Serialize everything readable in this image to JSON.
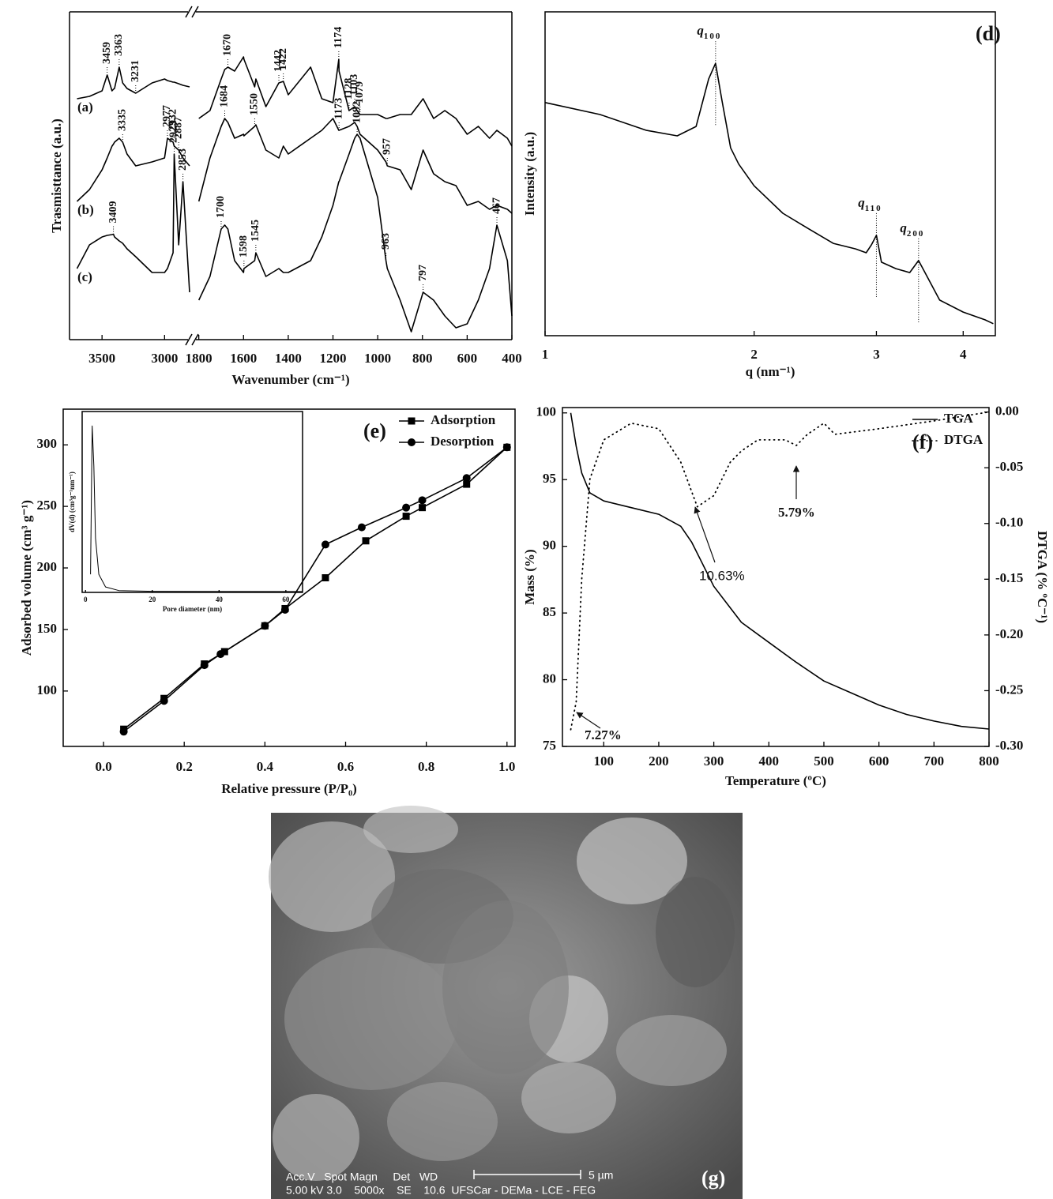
{
  "chart_data": [
    {
      "type": "line",
      "x_label": "Wavenumber (cm⁻¹)",
      "y_label": "Trasmisttance (a.u.)",
      "xlim": [
        3760,
        400
      ],
      "x_break": [
        2800,
        1820
      ],
      "ylim": [
        0,
        83
      ],
      "xticks": [
        3500,
        3000,
        1800,
        1600,
        1400,
        1200,
        1000,
        800,
        600,
        400
      ],
      "x": [
        3700,
        3600,
        3500,
        3459,
        3420,
        3409,
        3400,
        3363,
        3335,
        3300,
        3231,
        3100,
        3000,
        2977,
        2932,
        2923,
        2887,
        2853,
        2800,
        1800,
        1750,
        1700,
        1684,
        1670,
        1640,
        1600,
        1598,
        1550,
        1545,
        1500,
        1442,
        1422,
        1400,
        1300,
        1250,
        1200,
        1174,
        1173,
        1128,
        1103,
        1092,
        1079,
        1000,
        963,
        957,
        900,
        850,
        797,
        750,
        700,
        650,
        600,
        550,
        500,
        467,
        420,
        400
      ],
      "series": [
        {
          "name": "(a)",
          "color": "#000000",
          "values": [
            61,
            61.6,
            63,
            67,
            63,
            63.4,
            63.6,
            69,
            65,
            63.6,
            62.4,
            65,
            66,
            65.6,
            65.2,
            65.2,
            64.8,
            64.4,
            64,
            56,
            58,
            66,
            68.4,
            69,
            68,
            71.6,
            71,
            64,
            66,
            59,
            65,
            65.4,
            62,
            69,
            61,
            60,
            71,
            68,
            58,
            59,
            58,
            57,
            57,
            56,
            56,
            57,
            57,
            61,
            56,
            58,
            56,
            52,
            54,
            51,
            53,
            51,
            49
          ],
          "peaks": [
            3459,
            3363,
            3231,
            1670,
            1442,
            1422,
            1174,
            1128,
            1103,
            1079
          ]
        },
        {
          "name": "(b)",
          "color": "#000000",
          "values": [
            35,
            38,
            43,
            46,
            49,
            49.5,
            50,
            51,
            50,
            47,
            44,
            45,
            46,
            51,
            50,
            49,
            48,
            46,
            44,
            35,
            46,
            54,
            56,
            55,
            51,
            52,
            51.6,
            54,
            54.4,
            48,
            46,
            49,
            47,
            51,
            53,
            56,
            53,
            53,
            54,
            55,
            54,
            52,
            48,
            45,
            44,
            43,
            38,
            48,
            42,
            40,
            39,
            34,
            35,
            33,
            34,
            33,
            32
          ],
          "peaks": [
            2977,
            2932,
            2887,
            3335,
            1684,
            1550,
            1173,
            957
          ]
        },
        {
          "name": "(c)",
          "color": "#000000",
          "values": [
            18,
            24,
            26,
            26.4,
            26.6,
            26.7,
            26,
            25,
            24.4,
            23,
            21,
            17,
            17,
            18,
            22,
            47,
            24,
            40,
            12,
            10,
            16,
            28,
            29,
            28,
            20,
            17,
            18,
            20,
            22,
            16,
            18,
            17,
            17,
            20,
            26,
            34,
            40,
            40,
            47,
            51,
            52,
            51,
            36,
            20,
            18,
            10,
            2,
            12,
            10,
            6,
            3,
            4,
            10,
            18,
            29,
            20,
            6
          ],
          "peaks": [
            3409,
            2923,
            2853,
            1700,
            1598,
            1545,
            1092,
            963,
            797,
            467
          ]
        }
      ]
    },
    {
      "type": "line",
      "panel_label": "(d)",
      "x_label": "q (nm⁻¹)",
      "y_label": "Intensity (a.u.)",
      "xscale": "log",
      "xlim": [
        1,
        4.45
      ],
      "ylim": [
        0,
        100
      ],
      "xticks": [
        1,
        2,
        3,
        4
      ],
      "x": [
        1,
        1.2,
        1.4,
        1.55,
        1.65,
        1.72,
        1.76,
        1.8,
        1.85,
        1.9,
        2,
        2.2,
        2.4,
        2.6,
        2.8,
        2.9,
        2.95,
        3,
        3.05,
        3.2,
        3.35,
        3.45,
        3.5,
        3.7,
        4,
        4.3,
        4.42
      ],
      "series": [
        {
          "color": "#000000",
          "values": [
            72,
            68.3,
            63.4,
            61.7,
            64.6,
            79.3,
            84.1,
            72,
            58,
            53,
            46.3,
            37.8,
            32.9,
            28.5,
            26.8,
            25.6,
            28,
            31,
            22.7,
            20.7,
            19.5,
            23.2,
            20.7,
            11,
            7.3,
            4.9,
            3.7
          ]
        }
      ],
      "peaks": [
        {
          "label": "q",
          "sub": "100",
          "x": 1.76
        },
        {
          "label": "q",
          "sub": "110",
          "x": 3
        },
        {
          "label": "q",
          "sub": "200",
          "x": 3.45
        }
      ]
    },
    {
      "type": "line",
      "panel_label": "(e)",
      "x_label": "Relative pressure (P/P₀)",
      "y_label": "Adsorbed volume (cm³ g⁻¹)",
      "xlim": [
        -0.1,
        1.02
      ],
      "ylim": [
        55,
        329
      ],
      "legend": "upper right",
      "xticks": [
        {
          "value": 0,
          "label": "0.0"
        },
        0.2,
        0.4,
        0.6,
        0.8,
        {
          "value": 1,
          "label": "1.0"
        }
      ],
      "yticks": [
        100,
        150,
        200,
        250,
        300
      ],
      "series": [
        {
          "name": "Adsorption",
          "color": "#000000",
          "marker": "square",
          "x": [
            0.05,
            0.15,
            0.25,
            0.3,
            0.4,
            0.45,
            0.55,
            0.65,
            0.75,
            0.79,
            0.9,
            1
          ],
          "values": [
            69,
            94,
            122,
            132,
            153,
            167,
            192,
            222,
            242,
            249,
            268,
            298
          ]
        },
        {
          "name": "Desorption",
          "color": "#000000",
          "marker": "circle",
          "x": [
            0.05,
            0.15,
            0.25,
            0.29,
            0.4,
            0.45,
            0.55,
            0.64,
            0.75,
            0.79,
            0.9,
            1
          ],
          "values": [
            67,
            92,
            121,
            130,
            153,
            166,
            219,
            233,
            249,
            255,
            273,
            298
          ]
        }
      ]
    },
    {
      "type": "line",
      "x_label": "Pore diameter (nm)",
      "y_label": "dV(d) (cm³g⁻¹nm⁻¹)",
      "xlim": [
        -1,
        65
      ],
      "ylim": [
        0,
        100
      ],
      "xticks": [
        0,
        20,
        40,
        60
      ],
      "x": [
        1.5,
        2,
        2.5,
        3,
        4,
        6,
        10,
        20,
        65
      ],
      "series": [
        {
          "color": "#000000",
          "values": [
            10,
            92,
            70,
            30,
            10,
            3,
            1,
            0.6,
            0.5
          ]
        }
      ]
    },
    {
      "type": "line",
      "panel_label": "(f)",
      "x_label": "Temperature (ºC)",
      "y_label": "Mass (%)",
      "y2_label": "DTGA (% ºC⁻¹)",
      "xlim": [
        25,
        800
      ],
      "ylim": [
        75,
        100.4
      ],
      "y2lim": [
        -0.3,
        0.004
      ],
      "legend": "upper right",
      "xticks": [
        100,
        200,
        300,
        400,
        500,
        600,
        700,
        800
      ],
      "yticks": [
        75,
        80,
        85,
        90,
        95,
        100
      ],
      "y2ticks": [
        {
          "value": 0,
          "label": "0.00"
        },
        -0.05,
        {
          "value": -0.1,
          "label": "-0.10"
        },
        -0.15,
        {
          "value": -0.2,
          "label": "-0.20"
        },
        -0.25,
        {
          "value": -0.3,
          "label": "-0.30"
        }
      ],
      "annotations": [
        "7.27%",
        "10.63%",
        "5.79%"
      ],
      "series": [
        {
          "name": "TGA",
          "color": "#000000",
          "x": [
            40,
            50,
            60,
            75,
            100,
            150,
            200,
            240,
            260,
            300,
            350,
            400,
            450,
            500,
            550,
            600,
            650,
            700,
            750,
            800
          ],
          "values": [
            100,
            97.5,
            95.5,
            94,
            93.4,
            92.9,
            92.4,
            91.5,
            90.3,
            87,
            84.3,
            82.8,
            81.3,
            79.9,
            79,
            78.1,
            77.4,
            76.9,
            76.5,
            76.3
          ]
        },
        {
          "name": "DTGA",
          "color": "#000000",
          "dash": "dotted",
          "axis": "y2",
          "x": [
            40,
            50,
            60,
            75,
            100,
            150,
            200,
            240,
            270,
            300,
            330,
            350,
            380,
            430,
            450,
            470,
            500,
            520,
            600,
            700,
            800
          ],
          "values": [
            -0.285,
            -0.26,
            -0.15,
            -0.06,
            -0.025,
            -0.01,
            -0.015,
            -0.045,
            -0.085,
            -0.075,
            -0.045,
            -0.035,
            -0.025,
            -0.025,
            -0.03,
            -0.02,
            -0.01,
            -0.02,
            -0.015,
            -0.008,
            0
          ]
        }
      ]
    }
  ],
  "sem": {
    "line1": "Acc.V   Spot Magn     Det   WD",
    "line2": "5.00 kV 3.0    5000x    SE    10.6  UFSCar - DEMa - LCE - FEG",
    "scale": "5 µm",
    "label": "(g)"
  }
}
